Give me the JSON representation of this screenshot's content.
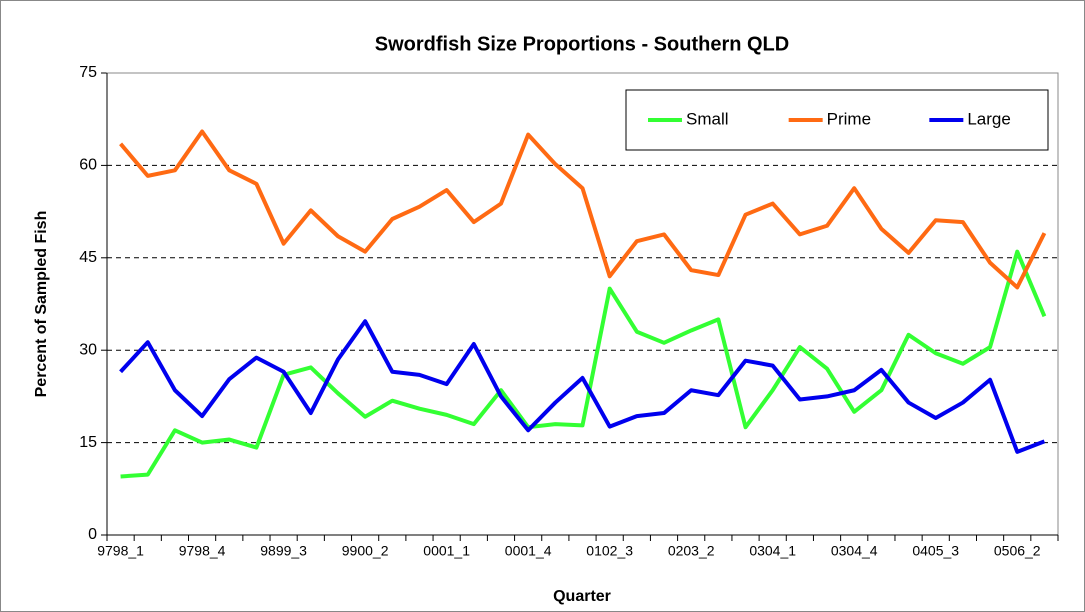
{
  "chart_data": {
    "type": "line",
    "title": "Swordfish Size Proportions - Southern QLD",
    "x_label": "Quarter",
    "y_label": "Percent of Sampled Fish",
    "categories": [
      "9798_1",
      null,
      null,
      "9798_4",
      null,
      null,
      "9899_3",
      null,
      null,
      "9900_2",
      null,
      null,
      "0001_1",
      null,
      null,
      "0001_4",
      null,
      null,
      "0102_3",
      null,
      null,
      "0203_2",
      null,
      null,
      "0304_1",
      null,
      null,
      "0304_4",
      null,
      null,
      "0405_3",
      null,
      null,
      "0506_2",
      null
    ],
    "series": [
      {
        "name": "Small",
        "color": "#33ff33",
        "values": [
          9.5,
          9.8,
          17,
          15,
          15.5,
          14.2,
          26,
          27.2,
          23,
          19.2,
          21.8,
          20.5,
          19.5,
          18,
          23.5,
          17.5,
          18,
          17.8,
          40,
          33,
          31.2,
          33.2,
          35,
          17.5,
          23.5,
          30.5,
          27,
          20,
          23.5,
          32.5,
          29.5,
          27.8,
          30.5,
          46,
          35.5
        ]
      },
      {
        "name": "Prime",
        "color": "#ff6a13",
        "values": [
          63.5,
          58.3,
          59.2,
          65.5,
          59.2,
          57,
          47.3,
          52.7,
          48.5,
          46,
          51.3,
          53.3,
          56,
          50.8,
          53.8,
          65,
          60.2,
          56.3,
          42,
          47.7,
          48.8,
          43,
          42.2,
          52,
          53.8,
          48.8,
          50.2,
          56.3,
          49.7,
          45.8,
          51.1,
          50.8,
          44.2,
          40.2,
          49
        ]
      },
      {
        "name": "Large",
        "color": "#0000ee",
        "values": [
          26.5,
          31.3,
          23.5,
          19.3,
          25.3,
          28.8,
          26.5,
          19.8,
          28.5,
          34.7,
          26.5,
          26,
          24.5,
          31,
          22.5,
          17,
          21.5,
          25.5,
          17.6,
          19.3,
          19.8,
          23.5,
          22.7,
          28.3,
          27.5,
          22,
          22.5,
          23.5,
          26.8,
          21.5,
          19,
          21.5,
          25.2,
          13.5,
          15.2
        ]
      }
    ],
    "ylim": [
      0,
      75
    ],
    "yticks": [
      0,
      15,
      30,
      45,
      60,
      75
    ],
    "grid": true,
    "legend": "upper right"
  }
}
